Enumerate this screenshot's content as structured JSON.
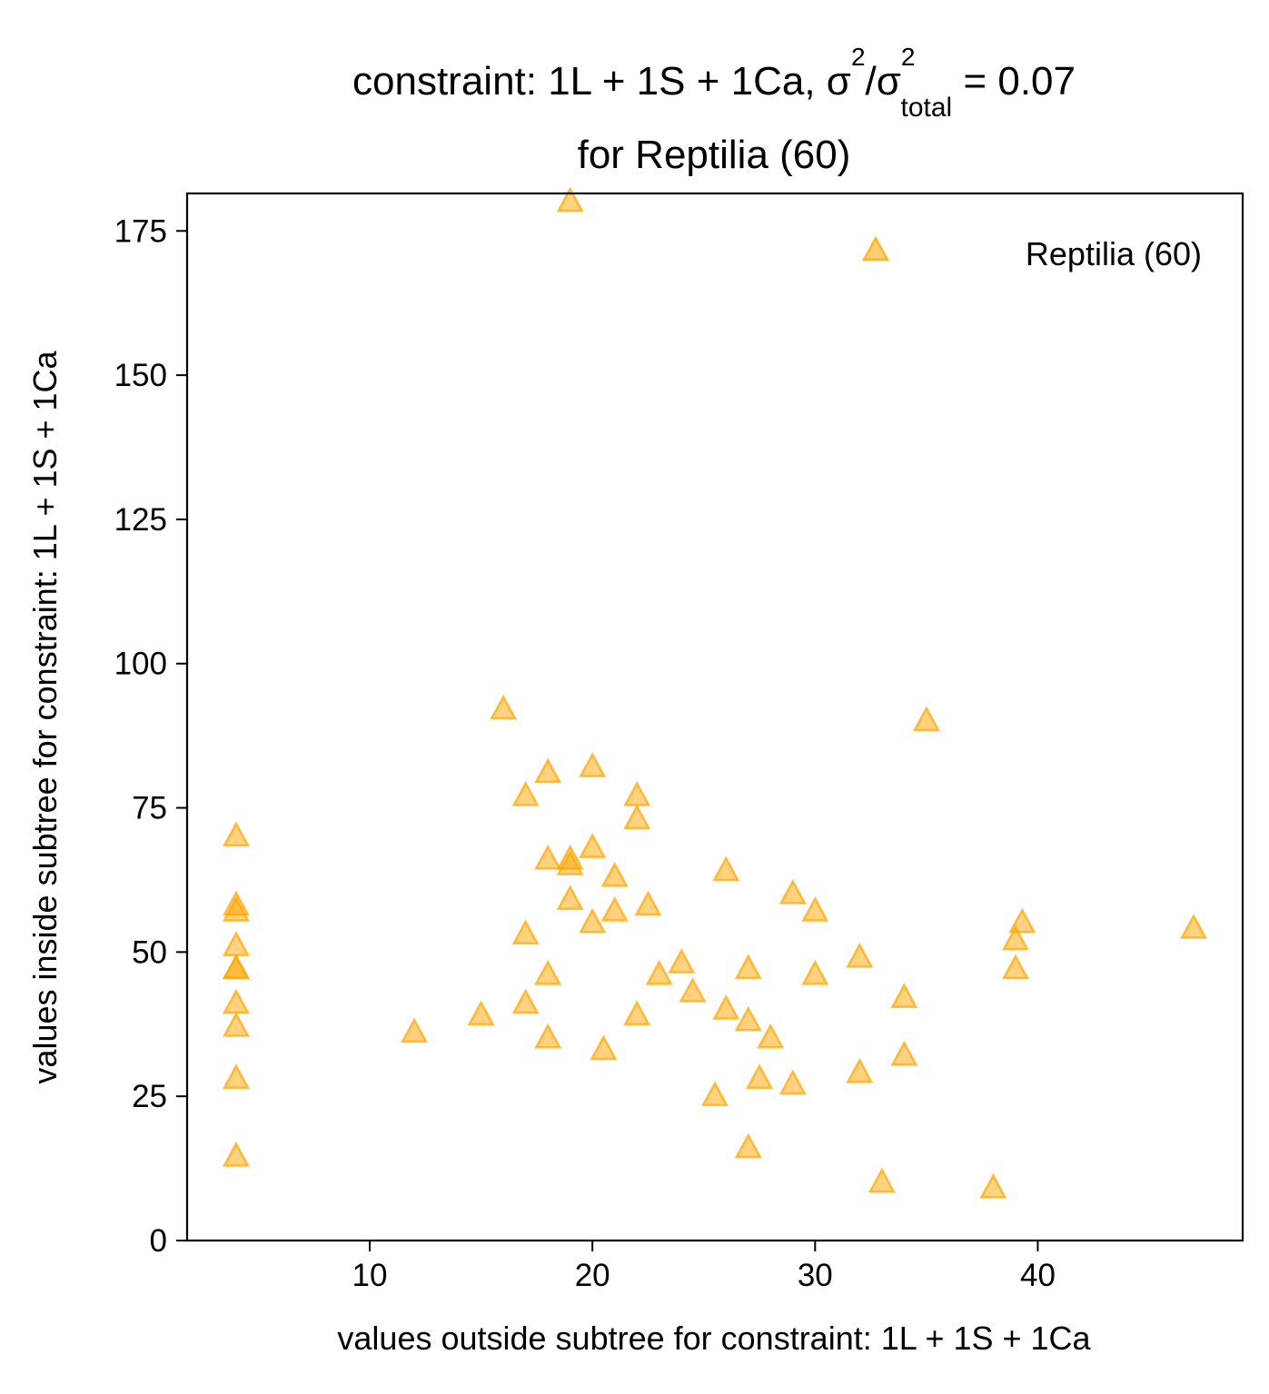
{
  "chart_data": {
    "type": "scatter",
    "title": {
      "line1_prefix": "constraint: 1L + 1S + 1Ca, σ",
      "sup1": "2",
      "mid": "/σ",
      "sup2": "2",
      "sub": "total",
      "suffix": " =  0.07",
      "line2": "for Reptilia (60)"
    },
    "xlabel": "values outside subtree for constraint: 1L + 1S + 1Ca",
    "ylabel": "values inside subtree for constraint: 1L + 1S + 1Ca",
    "xlim": [
      1.8,
      49.2
    ],
    "ylim": [
      0,
      181.5
    ],
    "xticks": [
      10,
      20,
      30,
      40
    ],
    "yticks": [
      0,
      25,
      50,
      75,
      100,
      125,
      150,
      175
    ],
    "grid": false,
    "legend_position": "top-right",
    "series": [
      {
        "name": "Reptilia (60)",
        "marker": "triangle",
        "color": "#FFA500",
        "points": [
          [
            4,
            70
          ],
          [
            4,
            58
          ],
          [
            4,
            57
          ],
          [
            4,
            51
          ],
          [
            4,
            47
          ],
          [
            4,
            47
          ],
          [
            4,
            41
          ],
          [
            4,
            37
          ],
          [
            4,
            28
          ],
          [
            4,
            14.5
          ],
          [
            12,
            36
          ],
          [
            15,
            39
          ],
          [
            16,
            92
          ],
          [
            17,
            77
          ],
          [
            17,
            53
          ],
          [
            17,
            41
          ],
          [
            18,
            81
          ],
          [
            18,
            66
          ],
          [
            18,
            46
          ],
          [
            18,
            35
          ],
          [
            19,
            180
          ],
          [
            19,
            66
          ],
          [
            19,
            65
          ],
          [
            19,
            59
          ],
          [
            20,
            82
          ],
          [
            20,
            68
          ],
          [
            20,
            55
          ],
          [
            20.5,
            33
          ],
          [
            21,
            63
          ],
          [
            21,
            57
          ],
          [
            22,
            77
          ],
          [
            22,
            73
          ],
          [
            22,
            39
          ],
          [
            22.5,
            58
          ],
          [
            23,
            46
          ],
          [
            24,
            48
          ],
          [
            24.5,
            43
          ],
          [
            25.5,
            25
          ],
          [
            26,
            64
          ],
          [
            26,
            40
          ],
          [
            27,
            47
          ],
          [
            27,
            38
          ],
          [
            27,
            16
          ],
          [
            27.5,
            28
          ],
          [
            28,
            35
          ],
          [
            29,
            60
          ],
          [
            29,
            27
          ],
          [
            30,
            57
          ],
          [
            30,
            46
          ],
          [
            32,
            49
          ],
          [
            32,
            29
          ],
          [
            33,
            10
          ],
          [
            34,
            42
          ],
          [
            34,
            32
          ],
          [
            35,
            90
          ],
          [
            38,
            9
          ],
          [
            39,
            52
          ],
          [
            39,
            47
          ],
          [
            39.3,
            55
          ],
          [
            47,
            54
          ]
        ]
      }
    ]
  }
}
